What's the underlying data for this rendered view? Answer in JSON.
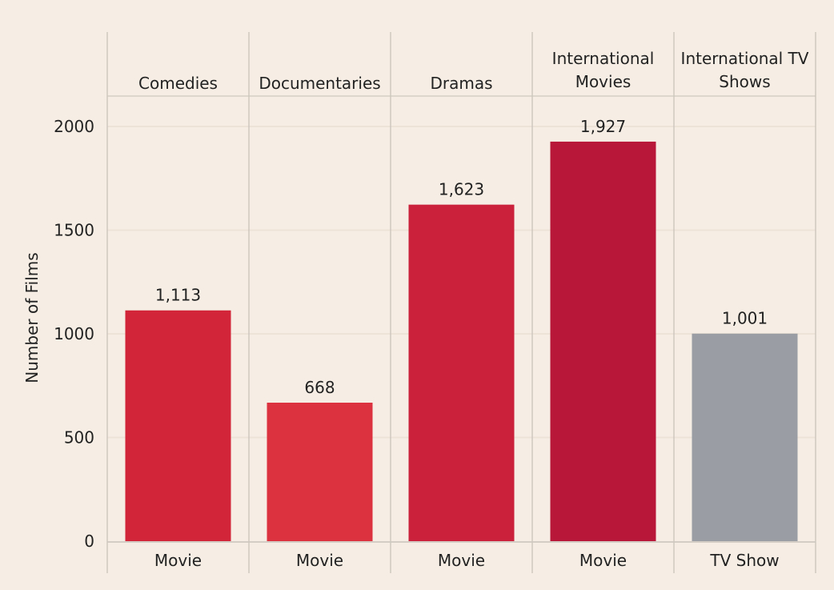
{
  "chart_data": {
    "type": "bar",
    "ylabel": "Number of Films",
    "ylim": [
      0,
      2200
    ],
    "yticks": [
      "0",
      "500",
      "1000",
      "1500",
      "2000"
    ],
    "grid": true,
    "categories": [
      {
        "header": [
          "Comedies"
        ],
        "type": "Movie",
        "value": 1113,
        "label": "1,113",
        "color": "#d2253a"
      },
      {
        "header": [
          "Documentaries"
        ],
        "type": "Movie",
        "value": 668,
        "label": "668",
        "color": "#dc323f"
      },
      {
        "header": [
          "Dramas"
        ],
        "type": "Movie",
        "value": 1623,
        "label": "1,623",
        "color": "#cb213b"
      },
      {
        "header": [
          "International",
          "Movies"
        ],
        "type": "Movie",
        "value": 1927,
        "label": "1,927",
        "color": "#b8173a"
      },
      {
        "header": [
          "International TV",
          "Shows"
        ],
        "type": "TV Show",
        "value": 1001,
        "label": "1,001",
        "color": "#9a9da3"
      }
    ]
  }
}
